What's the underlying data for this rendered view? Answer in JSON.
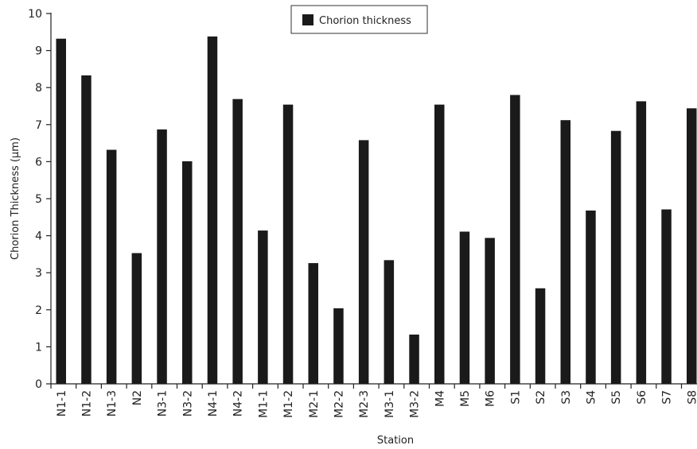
{
  "chart_data": {
    "type": "bar",
    "xlabel": "Station",
    "ylabel": "Chorion Thickness (μm)",
    "ylim": [
      0,
      10
    ],
    "yticks": [
      0,
      1,
      2,
      3,
      4,
      5,
      6,
      7,
      8,
      9,
      10
    ],
    "grid": false,
    "legend": {
      "placement": "top-center",
      "entries": [
        "Chorion thickness"
      ]
    },
    "bar_color": "#1a1a1a",
    "categories": [
      "N1-1",
      "N1-2",
      "N1-3",
      "N2",
      "N3-1",
      "N3-2",
      "N4-1",
      "N4-2",
      "M1-1",
      "M1-2",
      "M2-1",
      "M2-2",
      "M2-3",
      "M3-1",
      "M3-2",
      "M4",
      "M5",
      "M6",
      "S1",
      "S2",
      "S3",
      "S4",
      "S5",
      "S6",
      "S7",
      "S8"
    ],
    "series": [
      {
        "name": "Chorion thickness",
        "values": [
          9.32,
          8.33,
          6.32,
          3.53,
          6.87,
          6.01,
          9.38,
          7.69,
          4.14,
          7.54,
          3.26,
          2.04,
          6.58,
          3.34,
          1.33,
          7.54,
          4.11,
          3.94,
          7.8,
          2.58,
          7.12,
          4.68,
          6.83,
          7.63,
          4.71,
          7.44
        ]
      }
    ]
  }
}
